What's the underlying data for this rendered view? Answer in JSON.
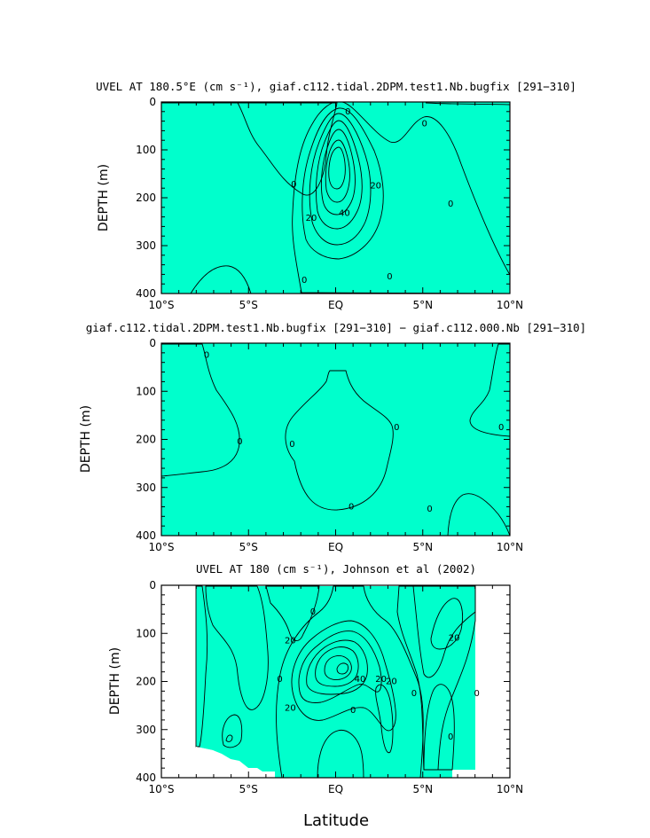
{
  "chart_data": [
    {
      "type": "contour",
      "title": "UVEL AT 180.5°E (cm s⁻¹), giaf.c112.tidal.2DPM.test1.Nb.bugfix [291−310]",
      "ylabel": "DEPTH (m)",
      "xlabel": "",
      "x_ticks": [
        "10°S",
        "5°S",
        "EQ",
        "5°N",
        "10°N"
      ],
      "y_ticks": [
        "0",
        "100",
        "200",
        "300",
        "400"
      ],
      "xlim": [
        -10,
        10
      ],
      "ylim": [
        400,
        0
      ],
      "contour_interval": 10,
      "contour_labels": [
        {
          "text": "0",
          "x": 0.7,
          "y": 20
        },
        {
          "text": "0",
          "x": 5.1,
          "y": 45
        },
        {
          "text": "0",
          "x": -2.4,
          "y": 172
        },
        {
          "text": "0",
          "x": 6.6,
          "y": 213
        },
        {
          "text": "0",
          "x": -1.8,
          "y": 372
        },
        {
          "text": "0",
          "x": 3.1,
          "y": 365
        },
        {
          "text": "20",
          "x": 2.3,
          "y": 175
        },
        {
          "text": "40",
          "x": 0.5,
          "y": 232
        },
        {
          "text": "20",
          "x": -1.4,
          "y": 243
        }
      ],
      "max_value_approx": 60,
      "max_location": {
        "x": 0,
        "y": 165
      }
    },
    {
      "type": "contour",
      "title": "giaf.c112.tidal.2DPM.test1.Nb.bugfix [291−310] − giaf.c112.000.Nb [291−310]",
      "ylabel": "DEPTH (m)",
      "xlabel": "",
      "x_ticks": [
        "10°S",
        "5°S",
        "EQ",
        "5°N",
        "10°N"
      ],
      "y_ticks": [
        "0",
        "100",
        "200",
        "300",
        "400"
      ],
      "xlim": [
        -10,
        10
      ],
      "ylim": [
        400,
        0
      ],
      "contour_labels": [
        {
          "text": "0",
          "x": -7.4,
          "y": 25
        },
        {
          "text": "0",
          "x": -5.5,
          "y": 205
        },
        {
          "text": "0",
          "x": -2.5,
          "y": 210
        },
        {
          "text": "0",
          "x": 3.5,
          "y": 175
        },
        {
          "text": "0",
          "x": 9.5,
          "y": 175
        },
        {
          "text": "0",
          "x": 0.9,
          "y": 340
        },
        {
          "text": "0",
          "x": 5.4,
          "y": 345
        }
      ]
    },
    {
      "type": "contour",
      "title": "UVEL AT 180 (cm s⁻¹), Johnson et al (2002)",
      "ylabel": "DEPTH (m)",
      "xlabel": "Latitude",
      "x_ticks": [
        "10°S",
        "5°S",
        "EQ",
        "5°N",
        "10°N"
      ],
      "y_ticks": [
        "0",
        "100",
        "200",
        "300",
        "400"
      ],
      "xlim": [
        -10,
        10
      ],
      "ylim": [
        400,
        0
      ],
      "data_extent": {
        "lat": [
          -8,
          8
        ],
        "depth": [
          0,
          400
        ]
      },
      "contour_labels": [
        {
          "text": "20",
          "x": -2.6,
          "y": 115
        },
        {
          "text": "20",
          "x": 6.8,
          "y": 110
        },
        {
          "text": "40",
          "x": 1.4,
          "y": 195
        },
        {
          "text": "20",
          "x": 2.6,
          "y": 195
        },
        {
          "text": "20",
          "x": 3.2,
          "y": 200
        },
        {
          "text": "20",
          "x": -2.6,
          "y": 255
        },
        {
          "text": "0",
          "x": -3.2,
          "y": 195
        },
        {
          "text": "0",
          "x": -1.3,
          "y": 55
        },
        {
          "text": "0",
          "x": 4.5,
          "y": 225
        },
        {
          "text": "0",
          "x": 8.1,
          "y": 225
        },
        {
          "text": "0",
          "x": 1.0,
          "y": 260
        },
        {
          "text": "0",
          "x": 6.6,
          "y": 315
        }
      ]
    }
  ],
  "colors": {
    "cyan": "#00ffff",
    "aquamarine": "#00ffcc",
    "green_bright": "#00ff44",
    "green_yellow": "#77ff00",
    "yellow": "#ffff00",
    "light_orange": "#ffcc33",
    "orange": "#ff9933",
    "dark_orange": "#f07a30"
  }
}
